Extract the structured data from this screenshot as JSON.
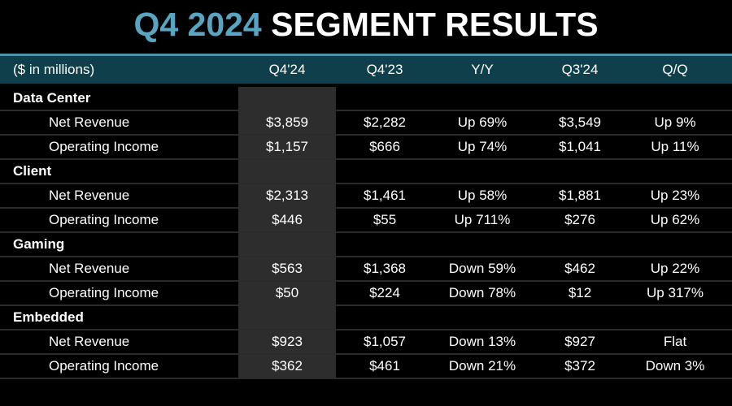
{
  "title": {
    "highlight": "Q4 2024",
    "rest": " SEGMENT RESULTS"
  },
  "colors": {
    "accent": "#4a93a8",
    "header_bg": "#0f3f4a",
    "title_teal": "#57a5c2",
    "column_bg": "#2d2d2d",
    "divider": "#2b2b2b",
    "text": "#ffffff"
  },
  "table": {
    "columns": [
      "($ in millions)",
      "Q4'24",
      "Q4'23",
      "Y/Y",
      "Q3'24",
      "Q/Q"
    ],
    "highlighted_column": "Q4'24",
    "sections": [
      {
        "label": "Data Center",
        "rows": [
          {
            "label": "Net Revenue",
            "values": [
              "$3,859",
              "$2,282",
              "Up 69%",
              "$3,549",
              "Up 9%"
            ]
          },
          {
            "label": "Operating Income",
            "values": [
              "$1,157",
              "$666",
              "Up 74%",
              "$1,041",
              "Up 11%"
            ]
          }
        ]
      },
      {
        "label": "Client",
        "rows": [
          {
            "label": "Net Revenue",
            "values": [
              "$2,313",
              "$1,461",
              "Up 58%",
              "$1,881",
              "Up 23%"
            ]
          },
          {
            "label": "Operating Income",
            "values": [
              "$446",
              "$55",
              "Up 711%",
              "$276",
              "Up 62%"
            ]
          }
        ]
      },
      {
        "label": "Gaming",
        "rows": [
          {
            "label": "Net Revenue",
            "values": [
              "$563",
              "$1,368",
              "Down 59%",
              "$462",
              "Up 22%"
            ]
          },
          {
            "label": "Operating Income",
            "values": [
              "$50",
              "$224",
              "Down 78%",
              "$12",
              "Up 317%"
            ]
          }
        ]
      },
      {
        "label": "Embedded",
        "rows": [
          {
            "label": "Net Revenue",
            "values": [
              "$923",
              "$1,057",
              "Down 13%",
              "$927",
              "Flat"
            ]
          },
          {
            "label": "Operating Income",
            "values": [
              "$362",
              "$461",
              "Down 21%",
              "$372",
              "Down 3%"
            ]
          }
        ]
      }
    ]
  }
}
